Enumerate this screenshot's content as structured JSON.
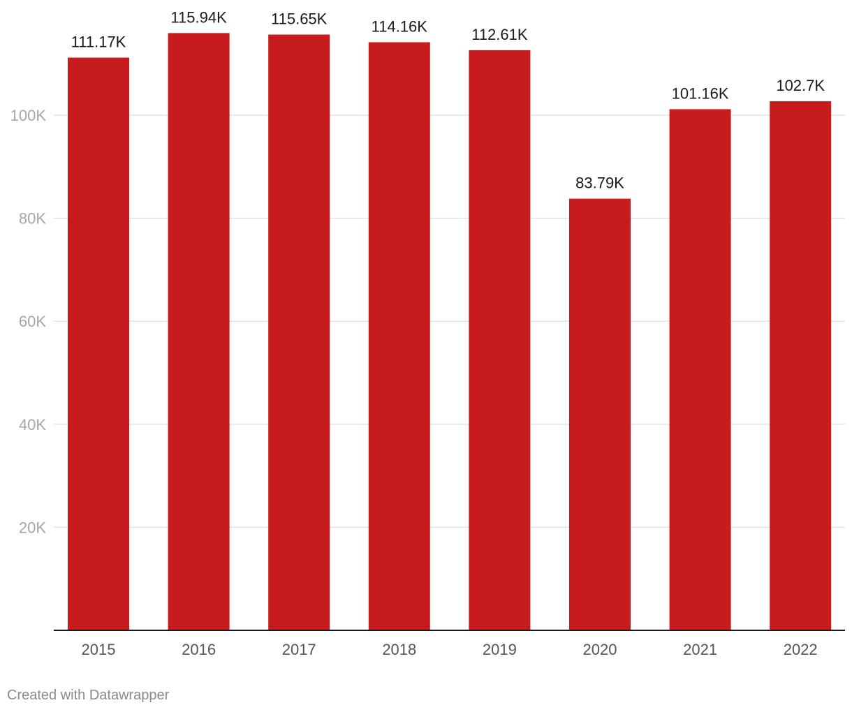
{
  "chart_data": {
    "type": "bar",
    "title": "",
    "xlabel": "",
    "ylabel": "",
    "categories": [
      "2015",
      "2016",
      "2017",
      "2018",
      "2019",
      "2020",
      "2021",
      "2022"
    ],
    "values": [
      111170,
      115940,
      115650,
      114160,
      112610,
      83790,
      101160,
      102700
    ],
    "data_labels": [
      "111.17K",
      "115.94K",
      "115.65K",
      "114.16K",
      "112.61K",
      "83.79K",
      "101.16K",
      "102.7K"
    ],
    "ylim": [
      0,
      120000
    ],
    "y_ticks": [
      20000,
      40000,
      60000,
      80000,
      100000
    ],
    "y_tick_labels": [
      "20K",
      "40K",
      "60K",
      "80K",
      "100K"
    ],
    "grid": true,
    "bar_color": "#c61c1e"
  },
  "footer": {
    "credit": "Created with Datawrapper"
  }
}
